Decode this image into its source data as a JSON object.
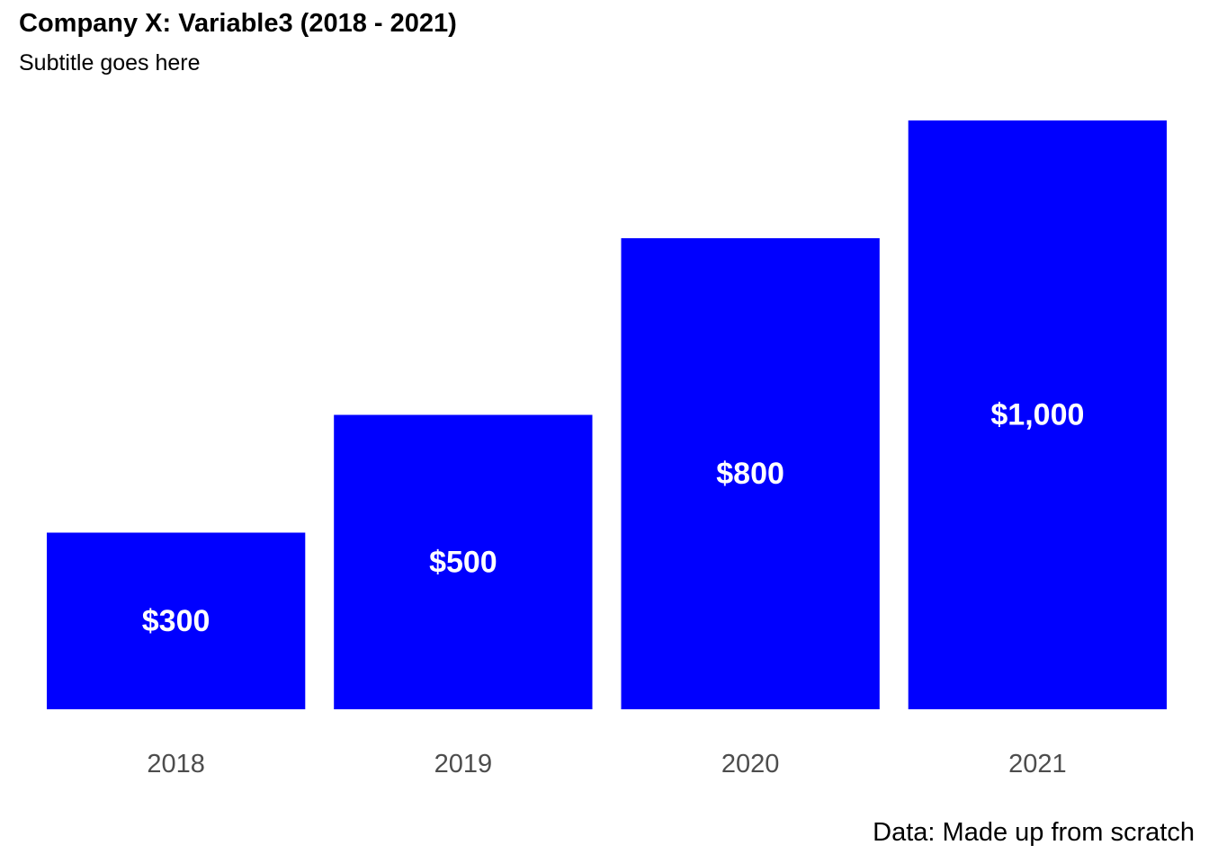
{
  "chart_data": {
    "type": "bar",
    "title": "Company X: Variable3 (2018 - 2021)",
    "subtitle": "Subtitle goes here",
    "caption": "Data: Made up from scratch",
    "categories": [
      "2018",
      "2019",
      "2020",
      "2021"
    ],
    "values": [
      300,
      500,
      800,
      1000
    ],
    "value_labels": [
      "$300",
      "$500",
      "$800",
      "$1,000"
    ],
    "ylim": [
      0,
      1000
    ],
    "grid": false,
    "legend": "none",
    "bar_color": "#0000ff",
    "label_color": "#ffffff"
  }
}
